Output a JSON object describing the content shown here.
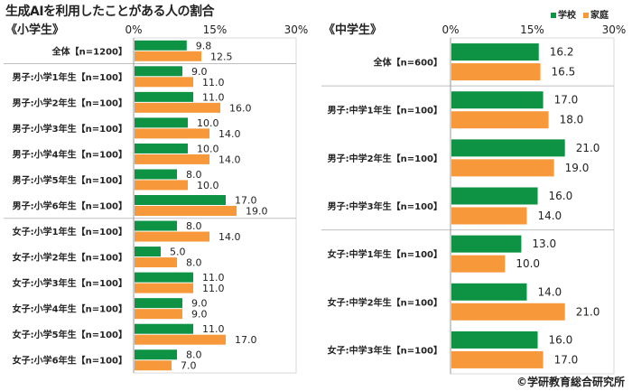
{
  "title": "生成AIを利用したことがある人の割合",
  "credit": "©学研教育総合研究所",
  "legend": [
    {
      "name": "学校",
      "color": "#0e9345"
    },
    {
      "name": "家庭",
      "color": "#f7993a"
    }
  ],
  "chart_data": [
    {
      "type": "bar",
      "orientation": "horizontal",
      "title": "《小学生》",
      "xlim": [
        0,
        30
      ],
      "xticks": [
        "0%",
        "15%",
        "30%"
      ],
      "categories": [
        "全体【n=1200】",
        "男子:小学1年生【n=100】",
        "男子:小学2年生【n=100】",
        "男子:小学3年生【n=100】",
        "男子:小学4年生【n=100】",
        "男子:小学5年生【n=100】",
        "男子:小学6年生【n=100】",
        "女子:小学1年生【n=100】",
        "女子:小学2年生【n=100】",
        "女子:小学3年生【n=100】",
        "女子:小学4年生【n=100】",
        "女子:小学5年生【n=100】",
        "女子:小学6年生【n=100】"
      ],
      "series": [
        {
          "name": "学校",
          "values": [
            9.8,
            9.0,
            11.0,
            10.0,
            10.0,
            8.0,
            17.0,
            8.0,
            5.0,
            11.0,
            9.0,
            11.0,
            8.0
          ]
        },
        {
          "name": "家庭",
          "values": [
            12.5,
            11.0,
            16.0,
            14.0,
            14.0,
            10.0,
            19.0,
            14.0,
            8.0,
            11.0,
            9.0,
            17.0,
            7.0
          ]
        }
      ]
    },
    {
      "type": "bar",
      "orientation": "horizontal",
      "title": "《中学生》",
      "xlim": [
        0,
        30
      ],
      "xticks": [
        "0%",
        "15%",
        "30%"
      ],
      "categories": [
        "全体【n=600】",
        "男子:中学1年生【n=100】",
        "男子:中学2年生【n=100】",
        "男子:中学3年生【n=100】",
        "女子:中学1年生【n=100】",
        "女子:中学2年生【n=100】",
        "女子:中学3年生【n=100】"
      ],
      "series": [
        {
          "name": "学校",
          "values": [
            16.2,
            17.0,
            21.0,
            16.0,
            13.0,
            14.0,
            16.0
          ]
        },
        {
          "name": "家庭",
          "values": [
            16.5,
            18.0,
            19.0,
            14.0,
            10.0,
            21.0,
            17.0
          ]
        }
      ]
    }
  ]
}
